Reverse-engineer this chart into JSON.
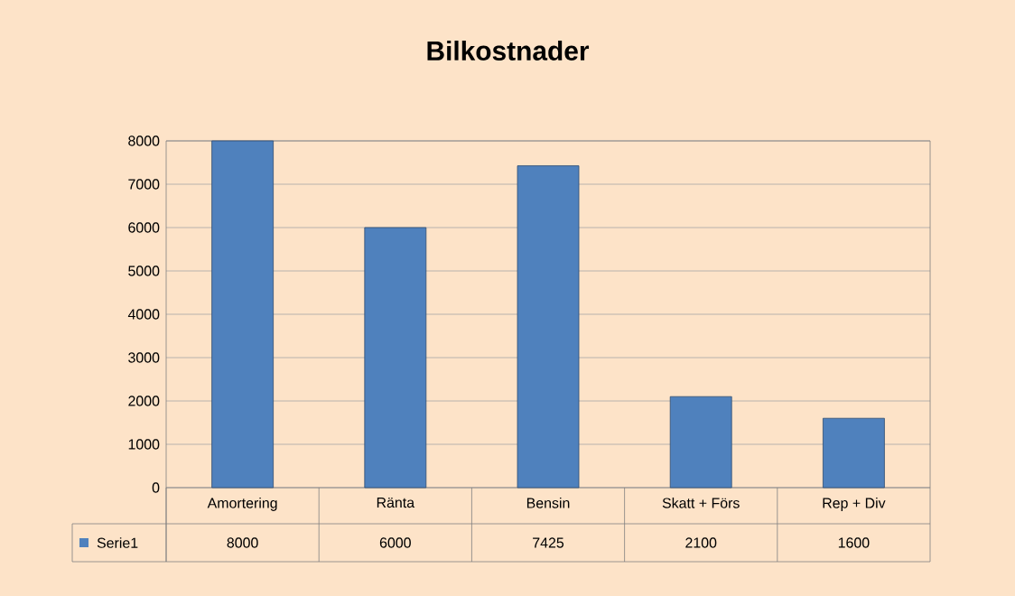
{
  "chart_data": {
    "type": "bar",
    "title": "Bilkostnader",
    "categories": [
      "Amortering",
      "Ränta",
      "Bensin",
      "Skatt + Förs",
      "Rep + Div"
    ],
    "series": [
      {
        "name": "Serie1",
        "color": "#4f81bd",
        "values": [
          8000,
          6000,
          7425,
          2100,
          1600
        ]
      }
    ],
    "ylim": [
      0,
      8000
    ],
    "yticks": [
      0,
      1000,
      2000,
      3000,
      4000,
      5000,
      6000,
      7000,
      8000
    ],
    "grid": "y",
    "data_labels": true,
    "legend": "bottom left"
  }
}
